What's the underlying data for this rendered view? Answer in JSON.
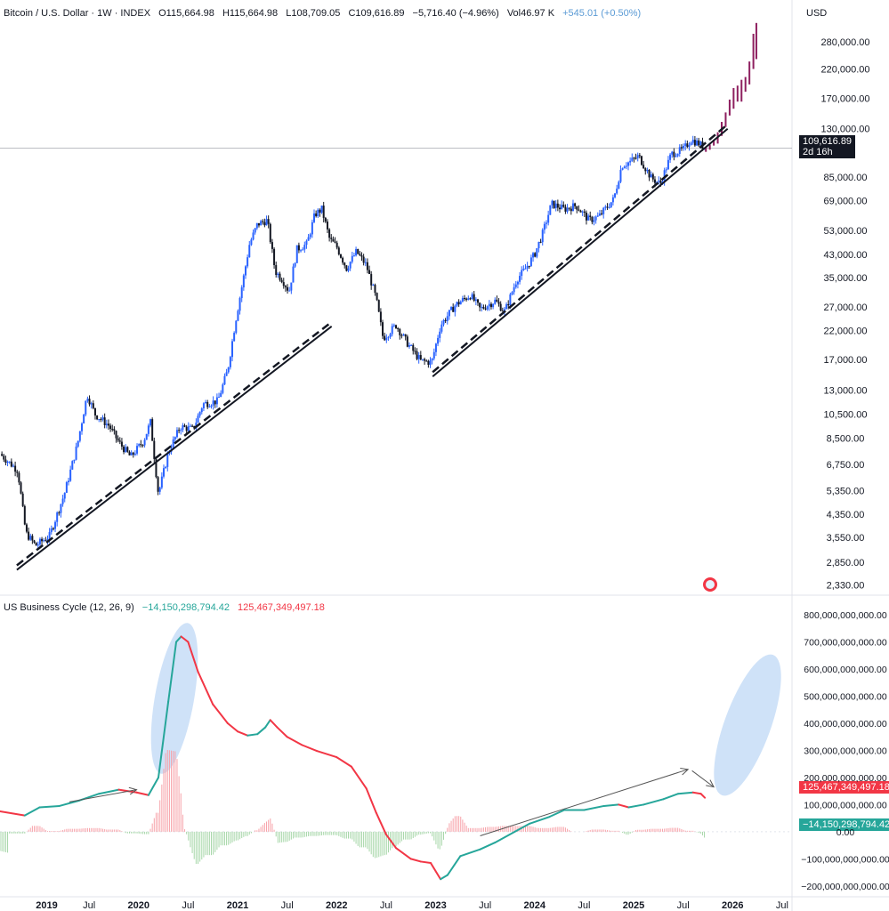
{
  "header": {
    "symbol": "Bitcoin / U.S. Dollar · 1W · INDEX",
    "open": "O115,664.98",
    "high": "H115,664.98",
    "low": "L108,709.05",
    "close": "C109,616.89",
    "change": "−5,716.40 (−4.96%)",
    "volume": "Vol46.97 K",
    "vol_change": "+545.01 (+0.50%)"
  },
  "currency": "USD",
  "price_tag": {
    "value": "109,616.89",
    "countdown": "2d 16h"
  },
  "indicator": {
    "name": "US Business Cycle (12, 26, 9)",
    "value1": "−14,150,298,794.42",
    "value2": "125,467,349,497.18"
  },
  "colors": {
    "up": "#2962ff",
    "down": "#131722",
    "projection": "#8e1f5f",
    "macd_up": "#26a69a",
    "macd_down": "#f23645",
    "hist_pos": "#f7a1a8",
    "hist_neg": "#a5d6a7",
    "ellipse": "#bbd6f5"
  },
  "chart_data": [
    {
      "type": "candlestick",
      "title": "Bitcoin / U.S. Dollar · 1W · INDEX",
      "scale": "log",
      "ylim": [
        2200,
        340000
      ],
      "y_ticks": [
        "280,000.00",
        "220,000.00",
        "170,000.00",
        "130,000.00",
        "85,000.00",
        "69,000.00",
        "53,000.00",
        "43,000.00",
        "35,000.00",
        "27,000.00",
        "22,000.00",
        "17,000.00",
        "13,000.00",
        "10,500.00",
        "8,500.00",
        "6,750.00",
        "5,350.00",
        "4,350.00",
        "3,550.00",
        "2,850.00",
        "2,330.00"
      ],
      "x_ticks": [
        "2019",
        "Jul",
        "2020",
        "Jul",
        "2021",
        "Jul",
        "2022",
        "Jul",
        "2023",
        "Jul",
        "2024",
        "Jul",
        "2025",
        "Jul",
        "2026",
        "Jul"
      ],
      "xlim": [
        2018.6,
        2026.6
      ],
      "price_path": [
        [
          2018.6,
          7400
        ],
        [
          2018.78,
          6400
        ],
        [
          2018.86,
          3700
        ],
        [
          2018.96,
          3300
        ],
        [
          2019.1,
          3600
        ],
        [
          2019.25,
          5200
        ],
        [
          2019.38,
          8000
        ],
        [
          2019.48,
          12500
        ],
        [
          2019.56,
          10500
        ],
        [
          2019.7,
          9500
        ],
        [
          2019.8,
          8200
        ],
        [
          2019.92,
          7200
        ],
        [
          2020.05,
          8300
        ],
        [
          2020.12,
          9800
        ],
        [
          2020.2,
          5200
        ],
        [
          2020.3,
          7500
        ],
        [
          2020.42,
          9400
        ],
        [
          2020.55,
          9200
        ],
        [
          2020.65,
          11500
        ],
        [
          2020.8,
          11800
        ],
        [
          2020.9,
          15500
        ],
        [
          2020.98,
          24000
        ],
        [
          2021.06,
          35000
        ],
        [
          2021.12,
          47000
        ],
        [
          2021.2,
          56000
        ],
        [
          2021.3,
          58000
        ],
        [
          2021.38,
          37000
        ],
        [
          2021.45,
          34500
        ],
        [
          2021.52,
          31000
        ],
        [
          2021.6,
          45000
        ],
        [
          2021.7,
          47000
        ],
        [
          2021.78,
          61000
        ],
        [
          2021.85,
          64000
        ],
        [
          2021.93,
          49000
        ],
        [
          2022.0,
          46000
        ],
        [
          2022.1,
          38000
        ],
        [
          2022.2,
          44000
        ],
        [
          2022.3,
          39000
        ],
        [
          2022.4,
          29000
        ],
        [
          2022.47,
          20500
        ],
        [
          2022.6,
          23000
        ],
        [
          2022.72,
          19500
        ],
        [
          2022.85,
          16800
        ],
        [
          2022.96,
          16600
        ],
        [
          2023.05,
          23000
        ],
        [
          2023.2,
          27500
        ],
        [
          2023.35,
          30000
        ],
        [
          2023.45,
          26500
        ],
        [
          2023.6,
          28500
        ],
        [
          2023.7,
          26000
        ],
        [
          2023.82,
          34500
        ],
        [
          2023.9,
          37500
        ],
        [
          2024.0,
          43000
        ],
        [
          2024.08,
          51500
        ],
        [
          2024.17,
          67000
        ],
        [
          2024.3,
          64000
        ],
        [
          2024.42,
          66000
        ],
        [
          2024.55,
          58000
        ],
        [
          2024.65,
          60000
        ],
        [
          2024.8,
          70000
        ],
        [
          2024.88,
          94000
        ],
        [
          2024.96,
          97000
        ],
        [
          2025.05,
          102000
        ],
        [
          2025.18,
          84000
        ],
        [
          2025.27,
          80000
        ],
        [
          2025.38,
          104000
        ],
        [
          2025.5,
          108000
        ],
        [
          2025.58,
          118000
        ],
        [
          2025.66,
          114000
        ],
        [
          2025.72,
          109616
        ]
      ],
      "projection": [
        [
          2025.73,
          106000,
          110000
        ],
        [
          2025.77,
          108000,
          113000
        ],
        [
          2025.81,
          112000,
          118000
        ],
        [
          2025.85,
          114000,
          126000
        ],
        [
          2025.89,
          122000,
          138000
        ],
        [
          2025.93,
          132000,
          150000
        ],
        [
          2025.97,
          146000,
          168000
        ],
        [
          2026.01,
          155000,
          186000
        ],
        [
          2026.05,
          165000,
          190000
        ],
        [
          2026.09,
          165000,
          200000
        ],
        [
          2026.13,
          180000,
          205000
        ],
        [
          2026.17,
          192000,
          235000
        ],
        [
          2026.21,
          220000,
          300000
        ],
        [
          2026.24,
          240000,
          330000
        ]
      ],
      "trendlines": [
        {
          "from": [
            2018.77,
            2750
          ],
          "to": [
            2021.95,
            23500
          ]
        },
        {
          "from": [
            2022.97,
            15100
          ],
          "to": [
            2025.95,
            134000
          ]
        }
      ]
    },
    {
      "type": "line",
      "title": "US Business Cycle (12, 26, 9)",
      "ylim": [
        -230000000000,
        820000000000
      ],
      "y_ticks": [
        "800,000,000,000.00",
        "700,000,000,000.00",
        "600,000,000,000.00",
        "500,000,000,000.00",
        "400,000,000,000.00",
        "300,000,000,000.00",
        "200,000,000,000.00",
        "100,000,000,000.00",
        "0.00",
        "−100,000,000,000.00",
        "−200,000,000,000.00"
      ],
      "cycle_line": [
        [
          2018.6,
          75
        ],
        [
          2018.85,
          60
        ],
        [
          2019.0,
          90
        ],
        [
          2019.2,
          95
        ],
        [
          2019.4,
          115
        ],
        [
          2019.6,
          140
        ],
        [
          2019.8,
          155
        ],
        [
          2019.98,
          145
        ],
        [
          2020.1,
          135
        ],
        [
          2020.2,
          200
        ],
        [
          2020.3,
          480
        ],
        [
          2020.38,
          700
        ],
        [
          2020.43,
          720
        ],
        [
          2020.5,
          700
        ],
        [
          2020.6,
          590
        ],
        [
          2020.75,
          470
        ],
        [
          2020.9,
          400
        ],
        [
          2021.0,
          370
        ],
        [
          2021.1,
          355
        ],
        [
          2021.2,
          360
        ],
        [
          2021.28,
          385
        ],
        [
          2021.33,
          412
        ],
        [
          2021.4,
          385
        ],
        [
          2021.5,
          350
        ],
        [
          2021.65,
          320
        ],
        [
          2021.8,
          298
        ],
        [
          2022.0,
          275
        ],
        [
          2022.15,
          240
        ],
        [
          2022.3,
          160
        ],
        [
          2022.4,
          70
        ],
        [
          2022.5,
          -10
        ],
        [
          2022.6,
          -60
        ],
        [
          2022.75,
          -100
        ],
        [
          2022.85,
          -110
        ],
        [
          2022.95,
          -115
        ],
        [
          2023.05,
          -175
        ],
        [
          2023.12,
          -160
        ],
        [
          2023.25,
          -90
        ],
        [
          2023.45,
          -65
        ],
        [
          2023.6,
          -40
        ],
        [
          2023.8,
          0
        ],
        [
          2023.95,
          30
        ],
        [
          2024.15,
          55
        ],
        [
          2024.3,
          80
        ],
        [
          2024.5,
          80
        ],
        [
          2024.7,
          95
        ],
        [
          2024.85,
          100
        ],
        [
          2024.95,
          90
        ],
        [
          2025.1,
          100
        ],
        [
          2025.3,
          120
        ],
        [
          2025.45,
          140
        ],
        [
          2025.6,
          145
        ],
        [
          2025.68,
          140
        ],
        [
          2025.72,
          125.5
        ]
      ],
      "arrows": [
        {
          "from": [
            2019.3,
            110
          ],
          "to": [
            2019.98,
            155
          ]
        },
        {
          "from": [
            2023.45,
            -15
          ],
          "to": [
            2025.55,
            230
          ]
        },
        {
          "from": [
            2025.59,
            225
          ],
          "to": [
            2025.81,
            165
          ]
        }
      ]
    }
  ]
}
